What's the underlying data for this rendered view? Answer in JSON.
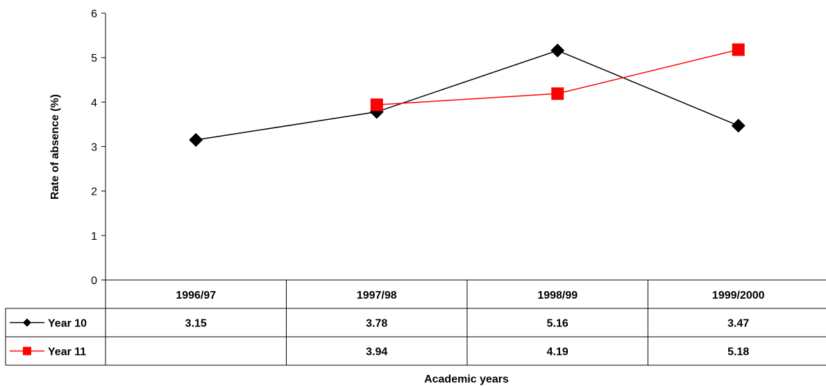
{
  "chart_data": {
    "type": "line",
    "xlabel": "Academic years",
    "ylabel": "Rate of absence (%)",
    "ylim": [
      0,
      6
    ],
    "yticks": [
      0,
      1,
      2,
      3,
      4,
      5,
      6
    ],
    "categories": [
      "1996/97",
      "1997/98",
      "1998/99",
      "1999/2000"
    ],
    "grid": false,
    "legend": "data-table",
    "series": [
      {
        "name": "Year 10",
        "values": [
          3.15,
          3.78,
          5.16,
          3.47
        ],
        "labels": [
          "3.15",
          "3.78",
          "5.16",
          "3.47"
        ],
        "color": "#000000",
        "marker": "diamond"
      },
      {
        "name": "Year 11",
        "values": [
          null,
          3.94,
          4.19,
          5.18
        ],
        "labels": [
          "",
          "3.94",
          "4.19",
          "5.18"
        ],
        "color": "#ff0000",
        "marker": "square"
      }
    ]
  }
}
